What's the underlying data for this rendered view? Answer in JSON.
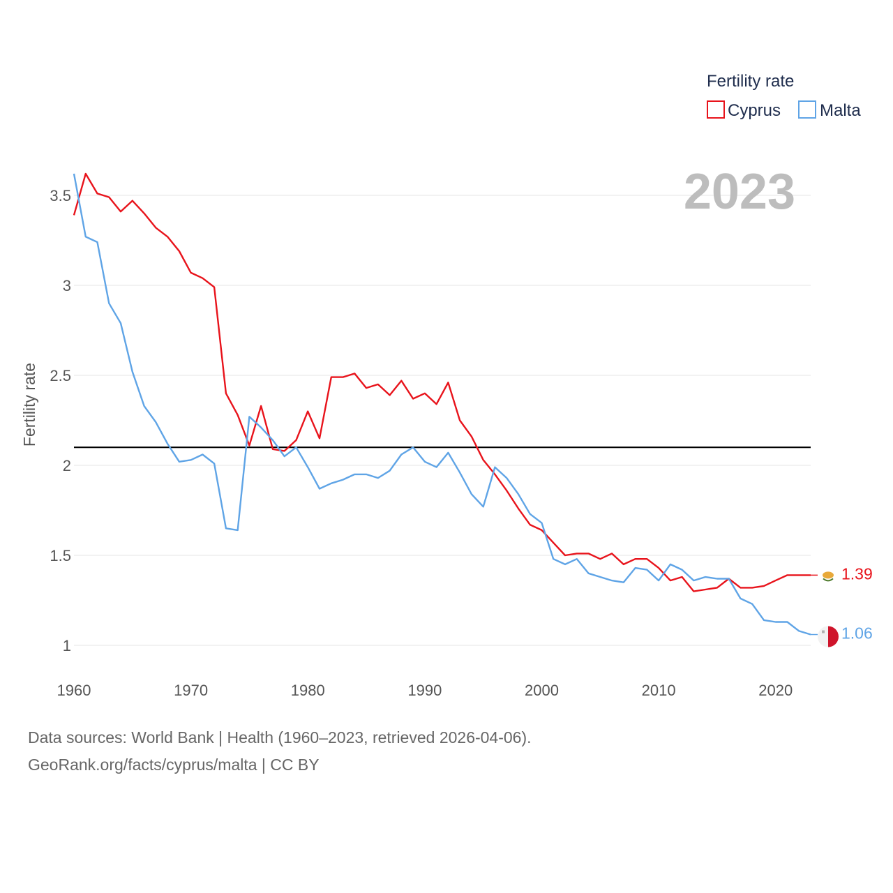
{
  "chart_data": {
    "type": "line",
    "overlay_year": "2023",
    "ylabel": "Fertility rate",
    "xlabel": "",
    "xlim": [
      1960,
      2023
    ],
    "ylim": [
      0.85,
      3.7
    ],
    "x_ticks": [
      1960,
      1970,
      1980,
      1990,
      2000,
      2010,
      2020
    ],
    "y_ticks": [
      {
        "value": 1,
        "label": "1"
      },
      {
        "value": 1.5,
        "label": "1.5"
      },
      {
        "value": 2,
        "label": "2"
      },
      {
        "value": 2.5,
        "label": "2.5"
      },
      {
        "value": 3,
        "label": "3"
      },
      {
        "value": 3.5,
        "label": "3.5"
      }
    ],
    "grid": true,
    "legend": {
      "title": "Fertility rate",
      "position": "top-right"
    },
    "reference_line": {
      "value": 2.1,
      "color": "#000000"
    },
    "x": [
      1960,
      1961,
      1962,
      1963,
      1964,
      1965,
      1966,
      1967,
      1968,
      1969,
      1970,
      1971,
      1972,
      1973,
      1974,
      1975,
      1976,
      1977,
      1978,
      1979,
      1980,
      1981,
      1982,
      1983,
      1984,
      1985,
      1986,
      1987,
      1988,
      1989,
      1990,
      1991,
      1992,
      1993,
      1994,
      1995,
      1996,
      1997,
      1998,
      1999,
      2000,
      2001,
      2002,
      2003,
      2004,
      2005,
      2006,
      2007,
      2008,
      2009,
      2010,
      2011,
      2012,
      2013,
      2014,
      2015,
      2016,
      2017,
      2018,
      2019,
      2020,
      2021,
      2022,
      2023
    ],
    "series": [
      {
        "name": "Cyprus",
        "color": "#e8131b",
        "end_label": "1.39",
        "flag_icon": "cyprus-flag-icon",
        "values": [
          3.39,
          3.62,
          3.51,
          3.49,
          3.41,
          3.47,
          3.4,
          3.32,
          3.27,
          3.19,
          3.07,
          3.04,
          2.99,
          2.4,
          2.28,
          2.11,
          2.33,
          2.09,
          2.08,
          2.14,
          2.3,
          2.15,
          2.49,
          2.49,
          2.51,
          2.43,
          2.45,
          2.39,
          2.47,
          2.37,
          2.4,
          2.34,
          2.46,
          2.25,
          2.16,
          2.03,
          1.95,
          1.86,
          1.76,
          1.67,
          1.64,
          1.57,
          1.5,
          1.51,
          1.51,
          1.48,
          1.51,
          1.45,
          1.48,
          1.48,
          1.43,
          1.36,
          1.38,
          1.3,
          1.31,
          1.32,
          1.37,
          1.32,
          1.32,
          1.33,
          1.36,
          1.39,
          1.39,
          1.39
        ]
      },
      {
        "name": "Malta",
        "color": "#5fa4e6",
        "end_label": "1.06",
        "flag_icon": "malta-flag-icon",
        "values": [
          3.62,
          3.27,
          3.24,
          2.9,
          2.79,
          2.52,
          2.33,
          2.24,
          2.12,
          2.02,
          2.03,
          2.06,
          2.01,
          1.65,
          1.64,
          2.27,
          2.21,
          2.14,
          2.05,
          2.1,
          1.99,
          1.87,
          1.9,
          1.92,
          1.95,
          1.95,
          1.93,
          1.97,
          2.06,
          2.1,
          2.02,
          1.99,
          2.07,
          1.96,
          1.84,
          1.77,
          1.99,
          1.93,
          1.84,
          1.73,
          1.68,
          1.48,
          1.45,
          1.48,
          1.4,
          1.38,
          1.36,
          1.35,
          1.43,
          1.42,
          1.36,
          1.45,
          1.42,
          1.36,
          1.38,
          1.37,
          1.37,
          1.26,
          1.23,
          1.14,
          1.13,
          1.13,
          1.08,
          1.06
        ]
      }
    ]
  },
  "footer": {
    "sources": "Data sources: World Bank | Health (1960–2023, retrieved 2026-04-06).",
    "attribution": "GeoRank.org/facts/cyprus/malta | CC BY"
  }
}
